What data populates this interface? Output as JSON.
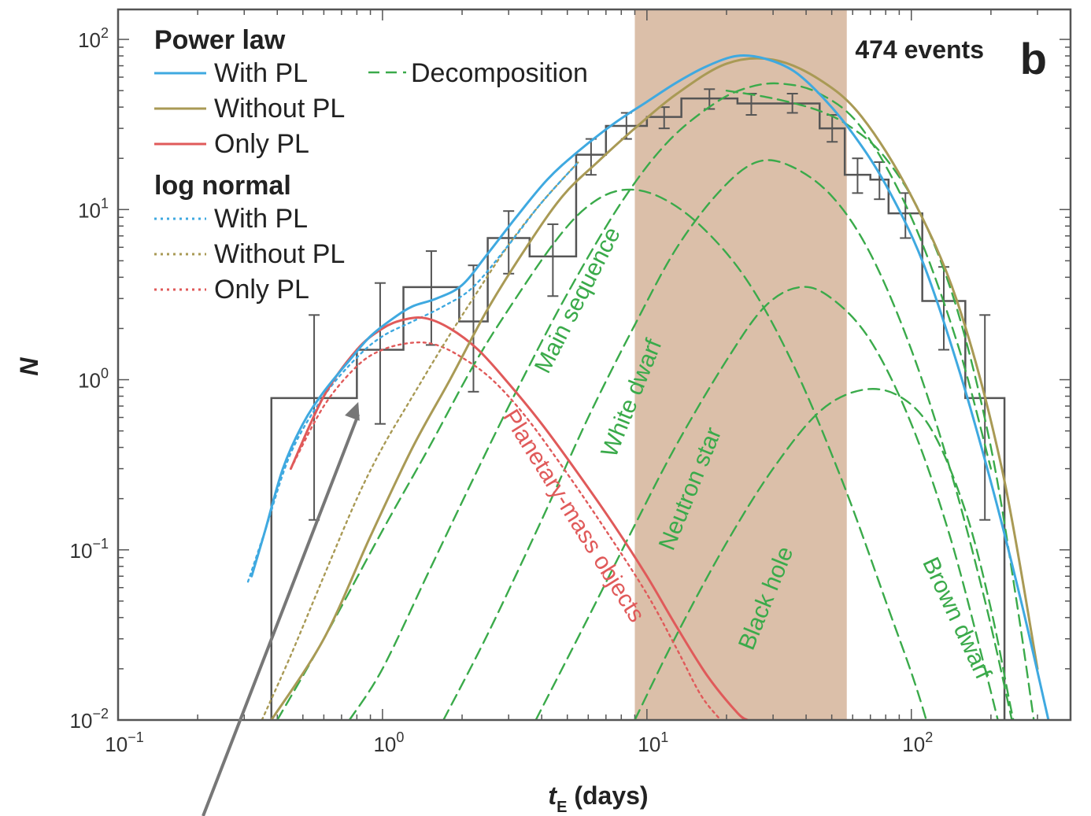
{
  "chart_data": {
    "type": "line",
    "panel_label": "b",
    "events_label": "474 events",
    "xlabel_main": "t",
    "xlabel_sub": "E",
    "xlabel_rest": " (days)",
    "ylabel": "N",
    "xscale": "log",
    "yscale": "log",
    "xlim": [
      0.1,
      400
    ],
    "ylim": [
      0.01,
      150
    ],
    "x_ticks": [
      {
        "value": 0.1,
        "base": "10",
        "exp": "−1"
      },
      {
        "value": 1,
        "base": "10",
        "exp": "0"
      },
      {
        "value": 10,
        "base": "10",
        "exp": "1"
      },
      {
        "value": 100,
        "base": "10",
        "exp": "2"
      }
    ],
    "y_ticks": [
      {
        "value": 0.01,
        "base": "10",
        "exp": "−2"
      },
      {
        "value": 0.1,
        "base": "10",
        "exp": "−1"
      },
      {
        "value": 1,
        "base": "10",
        "exp": "0"
      },
      {
        "value": 10,
        "base": "10",
        "exp": "1"
      },
      {
        "value": 100,
        "base": "10",
        "exp": "2"
      }
    ],
    "shaded_region": {
      "x": [
        9,
        57
      ],
      "color": "#dbbfa9"
    },
    "legend": {
      "groups": [
        {
          "title": "Power law",
          "items": [
            {
              "label": "With PL",
              "color": "#3fa9e0",
              "style": "solid"
            },
            {
              "label": "Without PL",
              "color": "#a99a55",
              "style": "solid"
            },
            {
              "label": "Only PL",
              "color": "#e05a5a",
              "style": "solid"
            }
          ]
        },
        {
          "title": "log normal",
          "items": [
            {
              "label": "With PL",
              "color": "#3fa9e0",
              "style": "dotted"
            },
            {
              "label": "Without PL",
              "color": "#a99a55",
              "style": "dotted"
            },
            {
              "label": "Only PL",
              "color": "#e05a5a",
              "style": "dotted"
            }
          ]
        }
      ],
      "extra": {
        "label": "Decomposition",
        "color": "#3aaa4a",
        "style": "dashed"
      }
    },
    "histogram": {
      "color": "#555555",
      "bins": [
        {
          "x0": 0.38,
          "x1": 0.8,
          "y": 0.78,
          "err": [
            0.15,
            2.4
          ]
        },
        {
          "x0": 0.8,
          "x1": 1.2,
          "y": 1.5,
          "err": [
            0.55,
            3.7
          ]
        },
        {
          "x0": 1.2,
          "x1": 1.95,
          "y": 3.5,
          "err": [
            1.6,
            5.7
          ]
        },
        {
          "x0": 1.95,
          "x1": 2.5,
          "y": 2.2,
          "err": [
            0.85,
            4.7
          ]
        },
        {
          "x0": 2.5,
          "x1": 3.6,
          "y": 6.8,
          "err": [
            4.2,
            9.8
          ]
        },
        {
          "x0": 3.6,
          "x1": 5.4,
          "y": 5.3,
          "err": [
            3.1,
            8.2
          ]
        },
        {
          "x0": 5.4,
          "x1": 7.0,
          "y": 21,
          "err": [
            16,
            26
          ]
        },
        {
          "x0": 7.0,
          "x1": 10.0,
          "y": 31,
          "err": [
            26,
            37
          ]
        },
        {
          "x0": 10.0,
          "x1": 13.5,
          "y": 35,
          "err": [
            30,
            40
          ]
        },
        {
          "x0": 13.5,
          "x1": 22.0,
          "y": 45,
          "err": [
            39,
            51
          ]
        },
        {
          "x0": 22.0,
          "x1": 28.0,
          "y": 42,
          "err": [
            36,
            48
          ]
        },
        {
          "x0": 28.0,
          "x1": 45.0,
          "y": 42,
          "err": [
            37,
            48
          ]
        },
        {
          "x0": 45.0,
          "x1": 56.0,
          "y": 30,
          "err": [
            25,
            36
          ]
        },
        {
          "x0": 56.0,
          "x1": 70.0,
          "y": 16,
          "err": [
            12.5,
            20
          ]
        },
        {
          "x0": 70.0,
          "x1": 82.0,
          "y": 15,
          "err": [
            11.5,
            19
          ]
        },
        {
          "x0": 82.0,
          "x1": 110.0,
          "y": 9.5,
          "err": [
            6.8,
            12.5
          ]
        },
        {
          "x0": 110.0,
          "x1": 160.0,
          "y": 2.9,
          "err": [
            1.5,
            4.6
          ]
        },
        {
          "x0": 160.0,
          "x1": 225.0,
          "y": 0.78,
          "err": [
            0.15,
            2.4
          ]
        }
      ]
    },
    "series": [
      {
        "key": "with_pl",
        "color": "#3fa9e0",
        "style": "solid",
        "x": [
          0.32,
          0.36,
          0.42,
          0.5,
          0.6,
          0.75,
          0.9,
          1.1,
          1.3,
          1.6,
          2.0,
          2.5,
          3.2,
          4.2,
          5.5,
          7.5,
          10,
          13,
          17,
          22,
          28,
          36,
          46,
          60,
          80,
          110,
          150,
          200,
          260,
          330
        ],
        "y": [
          0.07,
          0.13,
          0.3,
          0.55,
          0.85,
          1.3,
          1.8,
          2.3,
          2.7,
          3.0,
          3.6,
          5.5,
          9,
          15,
          22,
          32,
          43,
          56,
          70,
          80,
          77,
          65,
          46,
          28,
          14,
          5.0,
          1.2,
          0.25,
          0.05,
          0.01
        ]
      },
      {
        "key": "without_pl",
        "color": "#a99a55",
        "style": "solid",
        "x": [
          0.38,
          0.6,
          0.9,
          1.3,
          1.8,
          2.5,
          3.5,
          4.8,
          6.5,
          9,
          13,
          20,
          30,
          45,
          65,
          100,
          150,
          220,
          300
        ],
        "y": [
          0.01,
          0.03,
          0.12,
          0.4,
          1.0,
          2.6,
          6.0,
          12,
          19,
          30,
          48,
          72,
          76,
          58,
          35,
          12,
          2.8,
          0.3,
          0.02
        ]
      },
      {
        "key": "only_pl",
        "color": "#e05a5a",
        "style": "solid",
        "x": [
          0.45,
          0.6,
          0.8,
          1.0,
          1.2,
          1.45,
          1.8,
          2.3,
          3.0,
          4.0,
          5.5,
          7.5,
          10,
          13,
          17,
          22,
          24
        ],
        "y": [
          0.3,
          0.8,
          1.5,
          2.0,
          2.25,
          2.3,
          2.0,
          1.5,
          0.95,
          0.55,
          0.28,
          0.14,
          0.07,
          0.035,
          0.018,
          0.011,
          0.01
        ]
      },
      {
        "key": "with_pl_ln",
        "color": "#3fa9e0",
        "style": "dotted",
        "x": [
          0.31,
          0.36,
          0.45,
          0.6,
          0.8,
          1.0,
          1.3,
          1.7,
          2.2,
          3.0,
          4.0,
          5.5
        ],
        "y": [
          0.065,
          0.13,
          0.37,
          0.8,
          1.35,
          1.8,
          2.2,
          2.7,
          3.5,
          6.2,
          11,
          19
        ]
      },
      {
        "key": "without_pl_ln",
        "color": "#a99a55",
        "style": "dotted",
        "x": [
          0.35,
          0.45,
          0.6,
          0.8,
          1.0,
          1.3,
          1.7,
          2.2,
          3.0,
          4.0,
          5.5
        ],
        "y": [
          0.01,
          0.024,
          0.07,
          0.2,
          0.4,
          0.8,
          1.6,
          3.0,
          6.2,
          11,
          19
        ]
      },
      {
        "key": "only_pl_ln",
        "color": "#e05a5a",
        "style": "dotted",
        "x": [
          0.45,
          0.6,
          0.8,
          1.0,
          1.3,
          1.6,
          2.0,
          2.6,
          3.5,
          5.0,
          7.0,
          10,
          13,
          16,
          19
        ],
        "y": [
          0.3,
          0.7,
          1.2,
          1.5,
          1.65,
          1.6,
          1.35,
          1.0,
          0.6,
          0.28,
          0.13,
          0.055,
          0.026,
          0.014,
          0.01
        ]
      },
      {
        "key": "main_sequence",
        "color": "#3aaa4a",
        "style": "dashed",
        "x": [
          0.4,
          0.6,
          1.0,
          1.5,
          2.2,
          3.0,
          4.5,
          6.0,
          8.0,
          11,
          16,
          24,
          36,
          55,
          80,
          110,
          150
        ],
        "y": [
          0.01,
          0.03,
          0.13,
          0.4,
          1.2,
          2.6,
          6.5,
          10.5,
          13,
          12,
          8.0,
          3.8,
          1.2,
          0.25,
          0.05,
          0.012,
          0.002
        ]
      },
      {
        "key": "white_dwarf",
        "color": "#3aaa4a",
        "style": "dashed",
        "x": [
          0.75,
          1.0,
          1.5,
          2.2,
          3.2,
          5.0,
          8.0,
          12,
          18,
          24,
          32,
          45,
          65,
          100,
          150,
          200
        ],
        "y": [
          0.01,
          0.02,
          0.075,
          0.26,
          0.85,
          3.2,
          11,
          25,
          42,
          52,
          55,
          48,
          30,
          9,
          1.6,
          0.3
        ]
      },
      {
        "key": "neutron_star",
        "color": "#3aaa4a",
        "style": "dashed",
        "x": [
          1.7,
          2.5,
          4.0,
          6.0,
          9.0,
          13,
          19,
          26,
          35,
          50,
          70,
          100,
          140,
          190,
          240
        ],
        "y": [
          0.01,
          0.032,
          0.15,
          0.6,
          2.1,
          6.0,
          13,
          19,
          18,
          12,
          5.5,
          1.5,
          0.3,
          0.05,
          0.01
        ]
      },
      {
        "key": "black_hole",
        "color": "#3aaa4a",
        "style": "dashed",
        "x": [
          3.8,
          6.0,
          9.0,
          13,
          20,
          28,
          38,
          50,
          70,
          100,
          140,
          190,
          230
        ],
        "y": [
          0.01,
          0.04,
          0.14,
          0.42,
          1.3,
          2.7,
          3.5,
          3.0,
          1.7,
          0.55,
          0.12,
          0.02,
          0.006
        ]
      },
      {
        "key": "brown_dwarf",
        "color": "#3aaa4a",
        "style": "dashed",
        "x": [
          9,
          13,
          20,
          30,
          45,
          65,
          90,
          120,
          160,
          200,
          240,
          270
        ],
        "y": [
          0.01,
          0.032,
          0.11,
          0.3,
          0.65,
          0.87,
          0.8,
          0.5,
          0.17,
          0.045,
          0.011,
          0.005
        ]
      },
      {
        "key": "decomp_extra",
        "color": "#3aaa4a",
        "style": "dashed",
        "x": [
          20,
          30,
          45,
          60,
          80,
          110,
          150,
          200,
          250,
          300
        ],
        "y": [
          50,
          45,
          38,
          30,
          20,
          9,
          2.5,
          0.4,
          0.05,
          0.007
        ]
      }
    ],
    "annotations": [
      {
        "text": "Main sequence",
        "color": "#3aaa4a",
        "x": 5.8,
        "y": 2.8,
        "angle": -63
      },
      {
        "text": "White dwarf",
        "color": "#3aaa4a",
        "x": 9.3,
        "y": 0.75,
        "angle": -68
      },
      {
        "text": "Neutron star",
        "color": "#3aaa4a",
        "x": 15.5,
        "y": 0.22,
        "angle": -68
      },
      {
        "text": "Black hole",
        "color": "#3aaa4a",
        "x": 30,
        "y": 0.05,
        "angle": -68
      },
      {
        "text": "Brown dwarf",
        "color": "#3aaa4a",
        "x": 140,
        "y": 0.038,
        "angle": 65
      },
      {
        "text": "Planetary-mass objects",
        "color": "#e05a5a",
        "x": 5.0,
        "y": 0.15,
        "angle": 58
      }
    ],
    "pointer_arrow": {
      "color": "#777777",
      "to_x": 0.81,
      "to_y": 0.74
    }
  }
}
